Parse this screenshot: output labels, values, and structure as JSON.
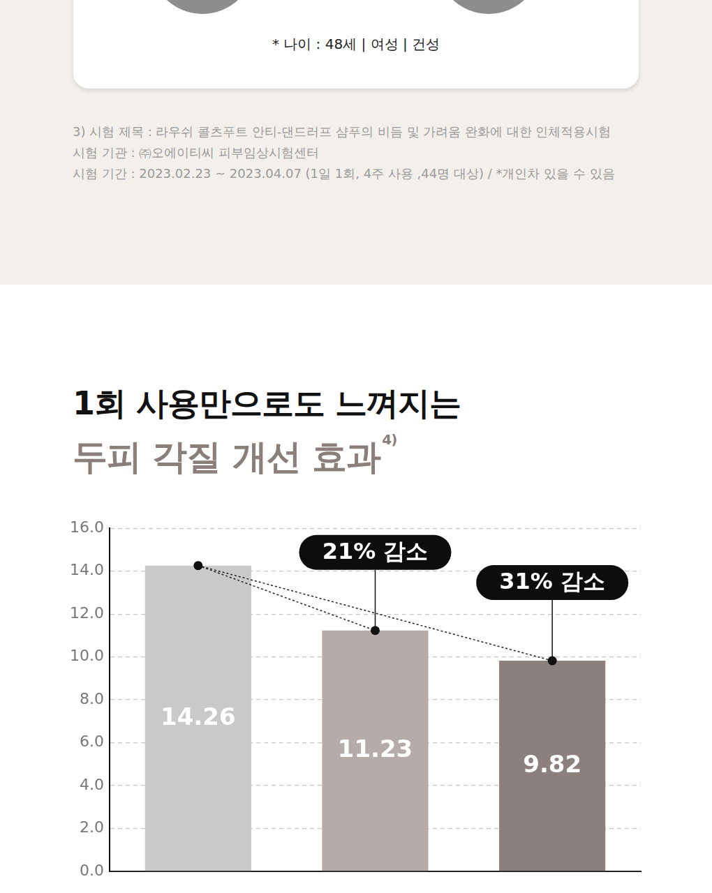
{
  "card": {
    "caption": "* 나이 : 48세 | 여성 | 건성"
  },
  "footnote": {
    "lines": [
      "3) 시험 제목 : 라우쉬 콜츠푸트 안티-댄드러프 샴푸의 비듬 및 가려움 완화에 대한 인체적용시험",
      "시험 기관 : ㈜오에이티씨 피부임상시험센터",
      "시험 기간 : 2023.02.23 ~ 2023.04.07 (1일 1회, 4주 사용 ,44명 대상) / *개인차 있을 수 있음"
    ]
  },
  "chart_data": {
    "type": "bar",
    "title": "1회 사용만으로도 느껴지는",
    "subtitle": "두피 각질 개선 효과",
    "subtitle_note": "4)",
    "categories": [
      null,
      null,
      null
    ],
    "values": [
      14.26,
      11.23,
      9.82
    ],
    "colors": [
      "#c9c9c9",
      "#b5aba8",
      "#8c807e"
    ],
    "annotations": [
      null,
      "21% 감소",
      "31% 감소"
    ],
    "data_labels": true,
    "grid": true,
    "tick_labels": "y",
    "ylim": [
      0,
      16
    ],
    "yticks": [
      {
        "value": 0,
        "label": "0.0"
      },
      {
        "value": 2,
        "label": "2.0"
      },
      {
        "value": 4,
        "label": "4.0"
      },
      {
        "value": 6,
        "label": "6.0"
      },
      {
        "value": 8,
        "label": "8.0"
      },
      {
        "value": 10,
        "label": "10.0"
      },
      {
        "value": 12,
        "label": "12.0"
      },
      {
        "value": 14,
        "label": "14.0"
      },
      {
        "value": 16,
        "label": "16.0"
      }
    ]
  }
}
